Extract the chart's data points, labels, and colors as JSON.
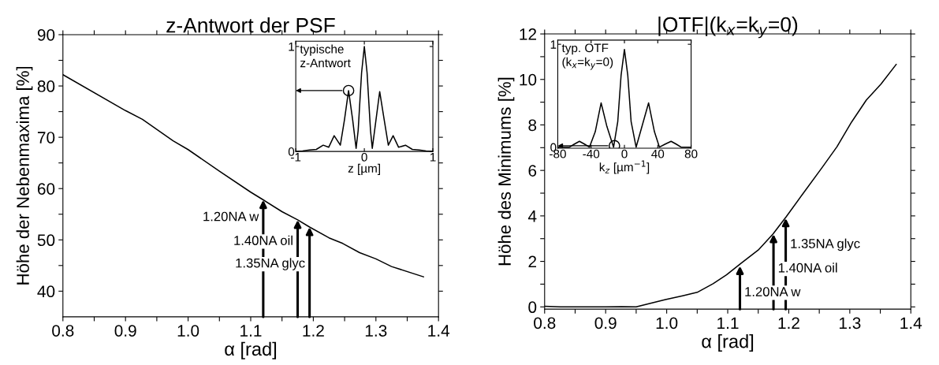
{
  "chart_data": [
    {
      "type": "line",
      "title": "z-Antwort der PSF",
      "xlabel": "α [rad]",
      "ylabel": "Höhe der Nebenmaxima [%]",
      "xlim": [
        0.8,
        1.4
      ],
      "xticks": [
        0.8,
        {
          "value": 0.85,
          "label": null
        },
        0.9,
        {
          "value": 0.95,
          "label": null
        },
        "1.0",
        {
          "value": 1.05,
          "label": null
        },
        1.1,
        {
          "value": 1.15,
          "label": null
        },
        1.2,
        {
          "value": 1.25,
          "label": null
        },
        1.3,
        {
          "value": 1.35,
          "label": null
        },
        1.4
      ],
      "ylim": [
        35,
        90
      ],
      "yticks": [
        40,
        {
          "value": 45,
          "label": null
        },
        50,
        {
          "value": 55,
          "label": null
        },
        60,
        {
          "value": 65,
          "label": null
        },
        70,
        {
          "value": 75,
          "label": null
        },
        80,
        {
          "value": 85,
          "label": null
        },
        90
      ],
      "series": [
        {
          "color": "#000000",
          "x": [
            0.8,
            0.9,
            0.927,
            0.976,
            1.0,
            1.05,
            1.1,
            1.12,
            1.15,
            1.175,
            1.194,
            1.225,
            1.247,
            1.274,
            1.3,
            1.325,
            1.376
          ],
          "values": [
            82.2,
            75.2,
            73.5,
            69.3,
            67.6,
            63.4,
            59.3,
            57.8,
            55.5,
            53.9,
            52.5,
            50.4,
            49.3,
            47.5,
            46.3,
            44.8,
            42.8
          ]
        }
      ],
      "annotations": [
        {
          "text": "1.20NA w",
          "x": 1.12,
          "y": 57.8
        },
        {
          "text": "1.40NA oil",
          "x": 1.175,
          "y": 53.9
        },
        {
          "text": "1.35NA glyc",
          "x": 1.194,
          "y": 52.5
        }
      ],
      "grid": false,
      "legend": false
    },
    {
      "type": "line",
      "xlabel": "z [µm]",
      "xlim": [
        -1,
        1
      ],
      "xticks": [
        -1,
        0,
        1
      ],
      "ylim": [
        0,
        1.05
      ],
      "yticks": [
        0,
        1
      ],
      "series": [
        {
          "color": "#000000",
          "x": [
            -1,
            -0.9,
            -0.8,
            -0.7,
            -0.6,
            -0.52,
            -0.44,
            -0.35,
            -0.29,
            -0.23,
            -0.17,
            -0.12,
            -0.09,
            -0.04,
            0,
            0.04,
            0.09,
            0.116,
            0.17,
            0.224,
            0.29,
            0.35,
            0.42,
            0.5,
            0.6,
            0.7,
            0.8,
            0.9,
            1
          ],
          "values": [
            0,
            0.005,
            0.015,
            0.02,
            0.06,
            0.04,
            0.15,
            0.06,
            0.3,
            0.58,
            0.3,
            0.03,
            0.2,
            0.75,
            1.0,
            0.75,
            0.2,
            0.03,
            0.3,
            0.57,
            0.3,
            0.06,
            0.15,
            0.04,
            0.06,
            0.02,
            0.015,
            0.005,
            0
          ]
        },
        {
          "type": "scatter",
          "color": "#000000",
          "marker": "circle",
          "x": [
            -0.23
          ],
          "values": [
            0.58
          ]
        }
      ],
      "annotations": [
        "typische\nz-Antwort"
      ],
      "grid": false,
      "legend": false
    },
    {
      "type": "line",
      "title": "|OTF|(k$_{x}$=k$_{y}$=0)",
      "xlabel": "α [rad]",
      "ylabel": "Höhe des Minimums [%]",
      "xlim": [
        0.8,
        1.4
      ],
      "xticks": [
        0.8,
        {
          "value": 0.85,
          "label": null
        },
        0.9,
        {
          "value": 0.95,
          "label": null
        },
        "1.0",
        {
          "value": 1.05,
          "label": null
        },
        1.1,
        {
          "value": 1.15,
          "label": null
        },
        1.2,
        {
          "value": 1.25,
          "label": null
        },
        1.3,
        {
          "value": 1.35,
          "label": null
        },
        1.4
      ],
      "ylim": [
        -0.1,
        12
      ],
      "yticks": [
        0,
        {
          "value": 1,
          "label": null
        },
        2,
        {
          "value": 3,
          "label": null
        },
        4,
        {
          "value": 5,
          "label": null
        },
        6,
        {
          "value": 7,
          "label": null
        },
        8,
        {
          "value": 9,
          "label": null
        },
        10,
        {
          "value": 11,
          "label": null
        },
        12
      ],
      "series": [
        {
          "color": "#000000",
          "x": [
            0.8,
            0.826,
            0.9,
            0.926,
            0.95,
            0.998,
            1.026,
            1.05,
            1.076,
            1.098,
            1.122,
            1.15,
            1.174,
            1.196,
            1.222,
            1.255,
            1.279,
            1.303,
            1.327,
            1.351,
            1.376
          ],
          "values": [
            0.03,
            0,
            0,
            0.01,
            0,
            0.32,
            0.49,
            0.64,
            1.02,
            1.41,
            1.92,
            2.5,
            3.2,
            3.97,
            4.93,
            6.14,
            7.04,
            8.13,
            9.09,
            9.79,
            10.66
          ]
        }
      ],
      "annotations": [
        {
          "text": "1.20NA w",
          "x": 1.12,
          "y": 1.8
        },
        {
          "text": "1.40NA oil",
          "x": 1.175,
          "y": 3.2
        },
        {
          "text": "1.35NA glyc",
          "x": 1.195,
          "y": 3.9
        }
      ],
      "grid": false,
      "legend": false
    },
    {
      "type": "line",
      "xlabel": "k$_{z}$ [µm$^{−1}$]",
      "xlim": [
        -80,
        80
      ],
      "xticks": [
        -80,
        -40,
        0,
        40,
        80
      ],
      "ylim": [
        -0.01,
        1.04
      ],
      "yticks": [
        0,
        1
      ],
      "series": [
        {
          "color": "#000000",
          "x": [
            -80,
            -66,
            -60,
            -54,
            -48,
            -42,
            -35,
            -28,
            -21,
            -13,
            -8,
            -4,
            0,
            4,
            8,
            14,
            21,
            29,
            36,
            42,
            49,
            56,
            62,
            68,
            80
          ],
          "values": [
            0,
            0,
            0.03,
            0.057,
            0.03,
            0,
            0.15,
            0.43,
            0.2,
            0,
            0.25,
            0.7,
            0.95,
            0.7,
            0.25,
            0,
            0.2,
            0.43,
            0.15,
            0,
            0.03,
            0.057,
            0.03,
            0,
            0
          ]
        },
        {
          "type": "scatter",
          "color": "#000000",
          "marker": "circle",
          "x": [
            -12
          ],
          "values": [
            0.014
          ]
        }
      ],
      "annotations": [
        "typ. OTF\n(k$_{x}$=k$_{y}$=0)"
      ],
      "grid": false,
      "legend": false
    }
  ]
}
